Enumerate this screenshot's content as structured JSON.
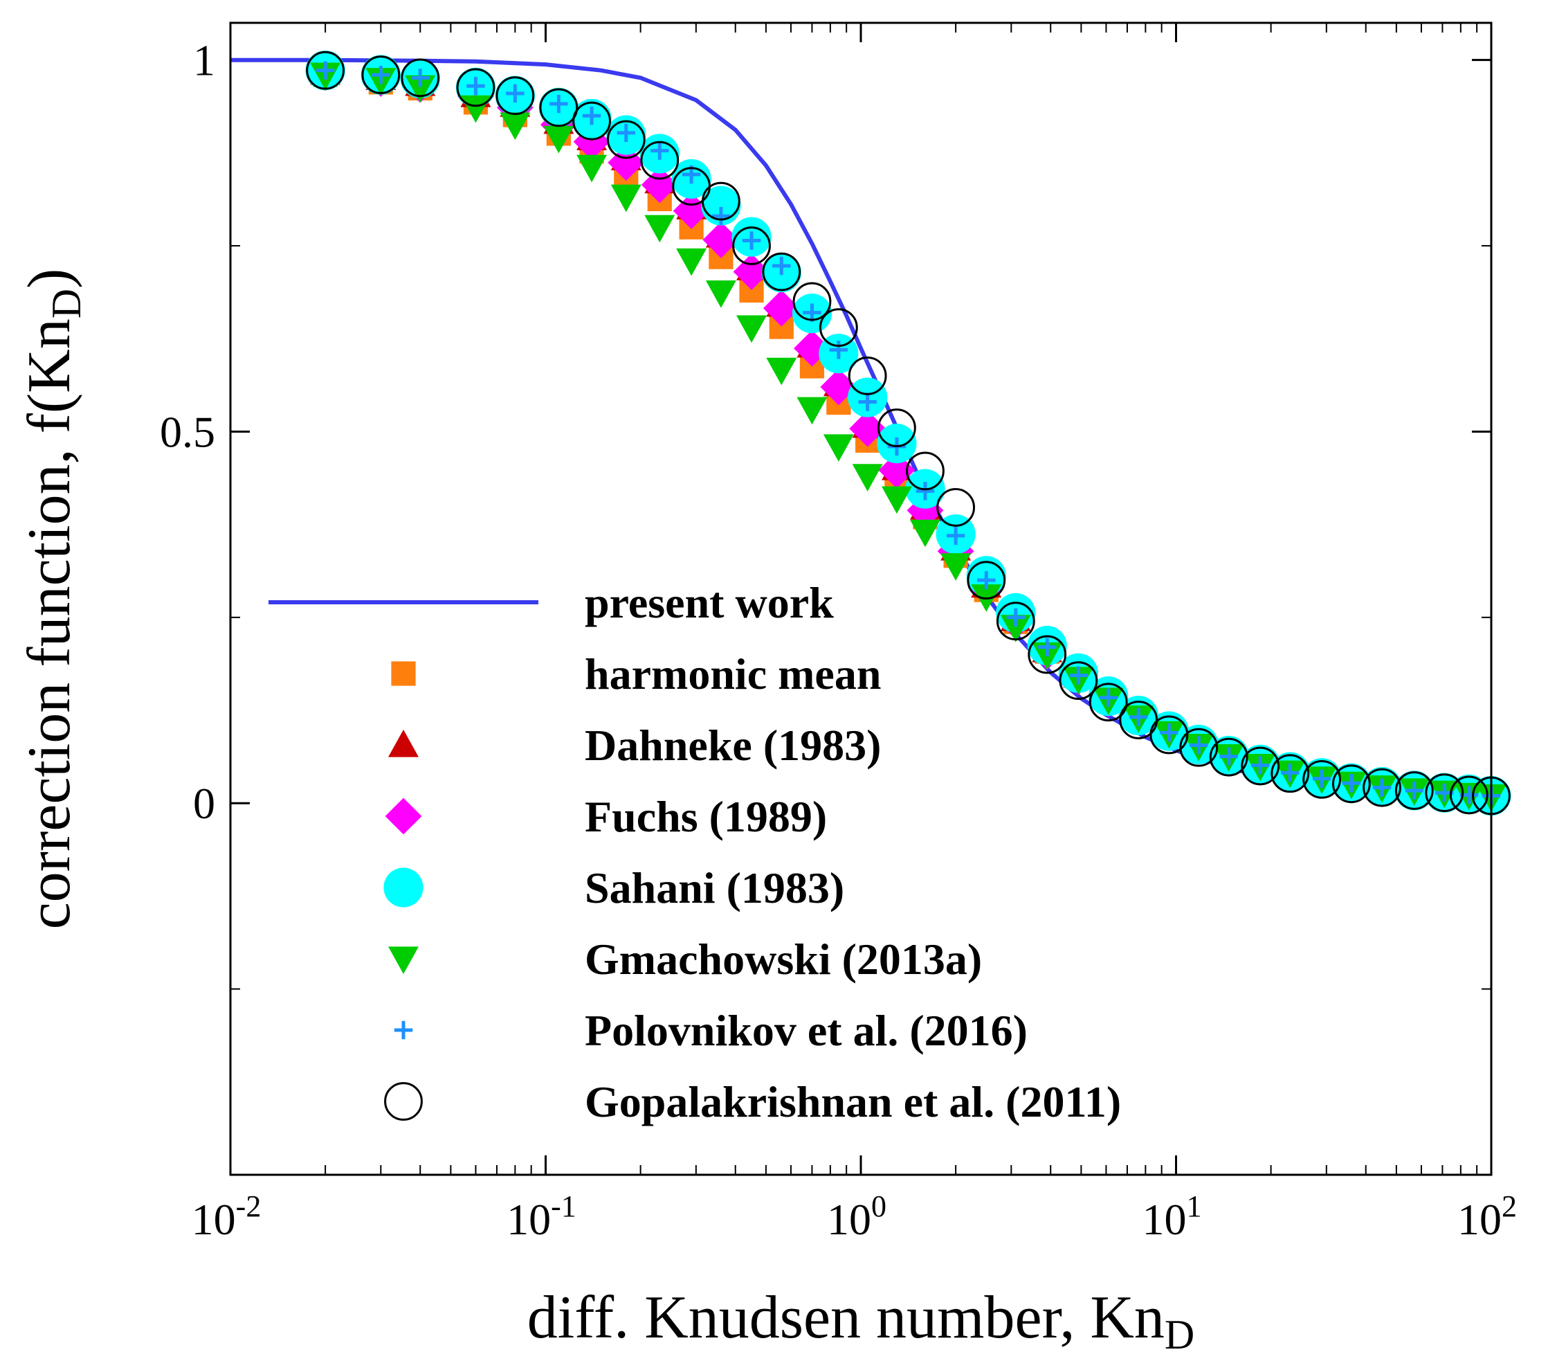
{
  "chart_data": {
    "type": "scatter",
    "title": "",
    "xlabel": "diff. Knudsen number, Kn",
    "xlabel_sub": "D",
    "ylabel": "correction function, f(Kn",
    "ylabel_sub": "D",
    "ylabel_end": ")",
    "xscale": "log",
    "xlim": [
      0.01,
      100
    ],
    "ylim": [
      -0.5,
      1.05
    ],
    "x_ticks": [
      {
        "value": 0.01,
        "base": "10",
        "exp": "-2"
      },
      {
        "value": 0.1,
        "base": "10",
        "exp": "-1"
      },
      {
        "value": 1,
        "base": "10",
        "exp": "0"
      },
      {
        "value": 10,
        "base": "10",
        "exp": "1"
      },
      {
        "value": 100,
        "base": "10",
        "exp": "2"
      }
    ],
    "y_ticks": [
      {
        "value": 0,
        "label": "0"
      },
      {
        "value": 0.5,
        "label": "0.5"
      },
      {
        "value": 1,
        "label": "1"
      }
    ],
    "legend_position": "center-left",
    "x": [
      0.02,
      0.03,
      0.04,
      0.06,
      0.08,
      0.11,
      0.14,
      0.18,
      0.23,
      0.29,
      0.36,
      0.45,
      0.56,
      0.7,
      0.85,
      1.05,
      1.3,
      1.6,
      2.0,
      2.5,
      3.1,
      3.9,
      4.9,
      6.1,
      7.6,
      9.5,
      11.8,
      14.7,
      18.5,
      23,
      29,
      36,
      45,
      57,
      71,
      85,
      100
    ],
    "series": [
      {
        "name": "present work",
        "marker": "line",
        "color": "#3a3aee",
        "x": [
          0.01,
          0.02,
          0.04,
          0.06,
          0.1,
          0.15,
          0.2,
          0.3,
          0.4,
          0.5,
          0.6,
          0.7,
          0.8,
          0.9,
          1.0,
          1.2,
          1.5,
          2,
          2.5,
          3,
          4,
          5,
          6,
          8,
          10,
          15,
          20,
          30,
          50,
          100
        ],
        "values": [
          1.0,
          1.0,
          0.999,
          0.998,
          0.994,
          0.986,
          0.976,
          0.946,
          0.906,
          0.858,
          0.806,
          0.753,
          0.702,
          0.656,
          0.612,
          0.538,
          0.446,
          0.345,
          0.279,
          0.234,
          0.176,
          0.141,
          0.119,
          0.089,
          0.071,
          0.046,
          0.035,
          0.023,
          0.013,
          0.007
        ]
      },
      {
        "name": "harmonic mean",
        "marker": "square",
        "color": "#ff7f0e",
        "values": [
          0.98,
          0.97,
          0.962,
          0.943,
          0.926,
          0.901,
          0.877,
          0.847,
          0.813,
          0.775,
          0.735,
          0.69,
          0.641,
          0.588,
          0.539,
          0.488,
          0.435,
          0.385,
          0.333,
          0.287,
          0.244,
          0.204,
          0.17,
          0.141,
          0.116,
          0.095,
          0.078,
          0.064,
          0.051,
          0.042,
          0.033,
          0.027,
          0.022,
          0.017,
          0.014,
          0.012,
          0.01
        ]
      },
      {
        "name": "Dahneke (1983)",
        "marker": "triangle-up",
        "color": "#cc0000",
        "values": [
          0.983,
          0.976,
          0.968,
          0.953,
          0.94,
          0.917,
          0.895,
          0.868,
          0.837,
          0.802,
          0.764,
          0.72,
          0.671,
          0.616,
          0.564,
          0.508,
          0.451,
          0.398,
          0.343,
          0.293,
          0.248,
          0.206,
          0.172,
          0.142,
          0.117,
          0.096,
          0.079,
          0.064,
          0.051,
          0.042,
          0.034,
          0.027,
          0.022,
          0.017,
          0.014,
          0.012,
          0.01
        ]
      },
      {
        "name": "Fuchs (1989)",
        "marker": "diamond",
        "color": "#ff00ff",
        "values": [
          0.983,
          0.975,
          0.967,
          0.951,
          0.936,
          0.913,
          0.89,
          0.862,
          0.832,
          0.797,
          0.758,
          0.715,
          0.666,
          0.612,
          0.56,
          0.504,
          0.448,
          0.394,
          0.339,
          0.29,
          0.245,
          0.204,
          0.17,
          0.14,
          0.116,
          0.095,
          0.078,
          0.063,
          0.051,
          0.041,
          0.033,
          0.027,
          0.021,
          0.017,
          0.014,
          0.011,
          0.01
        ]
      },
      {
        "name": "Sahani (1983)",
        "marker": "circle-filled",
        "color": "#00ffff",
        "values": [
          0.986,
          0.98,
          0.975,
          0.963,
          0.952,
          0.936,
          0.921,
          0.899,
          0.874,
          0.84,
          0.804,
          0.762,
          0.714,
          0.659,
          0.605,
          0.546,
          0.484,
          0.423,
          0.362,
          0.306,
          0.256,
          0.212,
          0.175,
          0.144,
          0.118,
          0.097,
          0.079,
          0.064,
          0.052,
          0.042,
          0.034,
          0.027,
          0.022,
          0.017,
          0.014,
          0.012,
          0.01
        ]
      },
      {
        "name": "Gmachowski (2013a)",
        "marker": "triangle-down",
        "color": "#00cc00",
        "values": [
          0.98,
          0.973,
          0.963,
          0.936,
          0.913,
          0.895,
          0.856,
          0.816,
          0.775,
          0.73,
          0.687,
          0.64,
          0.583,
          0.53,
          0.48,
          0.44,
          0.41,
          0.365,
          0.32,
          0.278,
          0.237,
          0.2,
          0.167,
          0.139,
          0.115,
          0.094,
          0.077,
          0.063,
          0.05,
          0.041,
          0.033,
          0.026,
          0.021,
          0.017,
          0.014,
          0.011,
          0.009
        ]
      },
      {
        "name": "Polovnikov et al. (2016)",
        "marker": "plus",
        "color": "#1e90ff",
        "values": [
          0.986,
          0.98,
          0.976,
          0.965,
          0.955,
          0.941,
          0.925,
          0.902,
          0.878,
          0.846,
          0.79,
          0.757,
          0.723,
          0.66,
          0.61,
          0.54,
          0.48,
          0.42,
          0.36,
          0.3,
          0.25,
          0.21,
          0.172,
          0.142,
          0.116,
          0.095,
          0.078,
          0.063,
          0.051,
          0.041,
          0.033,
          0.027,
          0.021,
          0.017,
          0.014,
          0.011,
          0.01
        ]
      },
      {
        "name": "Gopalakrishnan et al. (2011)",
        "marker": "circle-open",
        "color": "#000000",
        "values": [
          0.986,
          0.98,
          0.976,
          0.963,
          0.952,
          0.936,
          0.918,
          0.893,
          0.865,
          0.83,
          0.81,
          0.75,
          0.715,
          0.675,
          0.64,
          0.575,
          0.505,
          0.447,
          0.398,
          0.3,
          0.245,
          0.2,
          0.165,
          0.136,
          0.112,
          0.092,
          0.075,
          0.062,
          0.05,
          0.04,
          0.032,
          0.026,
          0.021,
          0.017,
          0.014,
          0.011,
          0.01
        ]
      }
    ]
  }
}
